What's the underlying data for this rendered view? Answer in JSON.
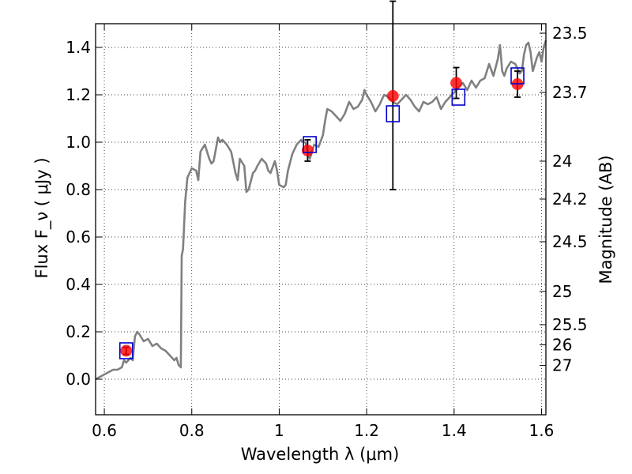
{
  "chart_data": {
    "type": "line",
    "title": "",
    "xlabel": "Wavelength  λ (μm)",
    "ylabel_left": "Flux  F_ν  ( μJy )",
    "ylabel_right": "Magnitude (AB)",
    "xlim": [
      0.58,
      1.61
    ],
    "ylim": [
      -0.15,
      1.5
    ],
    "grid": true,
    "x_ticks": [
      0.6,
      0.8,
      1.0,
      1.2,
      1.4,
      1.6
    ],
    "x_tick_labels": [
      "0.6",
      "0.8",
      "1",
      "1.2",
      "1.4",
      "1.6"
    ],
    "y_ticks": [
      0.0,
      0.2,
      0.4,
      0.6,
      0.8,
      1.0,
      1.2,
      1.4
    ],
    "y_tick_labels": [
      "0.0",
      "0.2",
      "0.4",
      "0.6",
      "0.8",
      "1.0",
      "1.2",
      "1.4"
    ],
    "right_ticks": [
      {
        "label": "23.5",
        "flux": 1.46
      },
      {
        "label": "23.7",
        "flux": 1.21
      },
      {
        "label": "24",
        "flux": 0.92
      },
      {
        "label": "24.2",
        "flux": 0.76
      },
      {
        "label": "24.5",
        "flux": 0.58
      },
      {
        "label": "25",
        "flux": 0.37
      },
      {
        "label": "25.5",
        "flux": 0.23
      },
      {
        "label": "26",
        "flux": 0.145
      },
      {
        "label": "27",
        "flux": 0.058
      }
    ],
    "model_spectrum": {
      "color": "#808080",
      "points": [
        [
          0.58,
          0.0
        ],
        [
          0.6,
          0.02
        ],
        [
          0.61,
          0.03
        ],
        [
          0.62,
          0.04
        ],
        [
          0.63,
          0.04
        ],
        [
          0.64,
          0.05
        ],
        [
          0.645,
          0.08
        ],
        [
          0.65,
          0.07
        ],
        [
          0.66,
          0.09
        ],
        [
          0.665,
          0.08
        ],
        [
          0.67,
          0.18
        ],
        [
          0.675,
          0.2
        ],
        [
          0.68,
          0.19
        ],
        [
          0.69,
          0.16
        ],
        [
          0.7,
          0.17
        ],
        [
          0.71,
          0.14
        ],
        [
          0.72,
          0.15
        ],
        [
          0.73,
          0.13
        ],
        [
          0.74,
          0.12
        ],
        [
          0.75,
          0.1
        ],
        [
          0.76,
          0.08
        ],
        [
          0.765,
          0.09
        ],
        [
          0.77,
          0.06
        ],
        [
          0.775,
          0.05
        ],
        [
          0.776,
          0.3
        ],
        [
          0.777,
          0.52
        ],
        [
          0.78,
          0.55
        ],
        [
          0.785,
          0.75
        ],
        [
          0.79,
          0.85
        ],
        [
          0.8,
          0.89
        ],
        [
          0.81,
          0.88
        ],
        [
          0.815,
          0.84
        ],
        [
          0.82,
          0.96
        ],
        [
          0.83,
          0.99
        ],
        [
          0.84,
          0.93
        ],
        [
          0.845,
          0.91
        ],
        [
          0.85,
          0.92
        ],
        [
          0.86,
          1.02
        ],
        [
          0.865,
          1.0
        ],
        [
          0.87,
          1.01
        ],
        [
          0.88,
          0.99
        ],
        [
          0.89,
          0.96
        ],
        [
          0.9,
          0.87
        ],
        [
          0.905,
          0.84
        ],
        [
          0.91,
          0.93
        ],
        [
          0.92,
          0.9
        ],
        [
          0.925,
          0.79
        ],
        [
          0.93,
          0.8
        ],
        [
          0.94,
          0.87
        ],
        [
          0.945,
          0.88
        ],
        [
          0.95,
          0.9
        ],
        [
          0.96,
          0.93
        ],
        [
          0.97,
          0.91
        ],
        [
          0.975,
          0.88
        ],
        [
          0.98,
          0.87
        ],
        [
          0.99,
          0.92
        ],
        [
          0.995,
          0.88
        ],
        [
          1.0,
          0.82
        ],
        [
          1.01,
          0.81
        ],
        [
          1.015,
          0.82
        ],
        [
          1.02,
          0.88
        ],
        [
          1.03,
          0.95
        ],
        [
          1.04,
          0.99
        ],
        [
          1.05,
          1.01
        ],
        [
          1.055,
          1.0
        ],
        [
          1.06,
          1.0
        ],
        [
          1.065,
          0.96
        ],
        [
          1.07,
          0.93
        ],
        [
          1.08,
          0.99
        ],
        [
          1.09,
          0.98
        ],
        [
          1.1,
          1.03
        ],
        [
          1.105,
          1.09
        ],
        [
          1.11,
          1.14
        ],
        [
          1.12,
          1.13
        ],
        [
          1.13,
          1.11
        ],
        [
          1.14,
          1.09
        ],
        [
          1.15,
          1.12
        ],
        [
          1.16,
          1.17
        ],
        [
          1.17,
          1.14
        ],
        [
          1.18,
          1.15
        ],
        [
          1.19,
          1.18
        ],
        [
          1.195,
          1.22
        ],
        [
          1.2,
          1.2
        ],
        [
          1.21,
          1.17
        ],
        [
          1.22,
          1.13
        ],
        [
          1.23,
          1.16
        ],
        [
          1.24,
          1.2
        ],
        [
          1.25,
          1.19
        ],
        [
          1.26,
          1.17
        ],
        [
          1.27,
          1.16
        ],
        [
          1.28,
          1.18
        ],
        [
          1.29,
          1.2
        ],
        [
          1.3,
          1.18
        ],
        [
          1.31,
          1.15
        ],
        [
          1.32,
          1.13
        ],
        [
          1.33,
          1.17
        ],
        [
          1.34,
          1.16
        ],
        [
          1.35,
          1.17
        ],
        [
          1.36,
          1.19
        ],
        [
          1.37,
          1.14
        ],
        [
          1.38,
          1.17
        ],
        [
          1.39,
          1.19
        ],
        [
          1.4,
          1.21
        ],
        [
          1.41,
          1.23
        ],
        [
          1.42,
          1.25
        ],
        [
          1.43,
          1.22
        ],
        [
          1.44,
          1.26
        ],
        [
          1.45,
          1.23
        ],
        [
          1.46,
          1.26
        ],
        [
          1.47,
          1.27
        ],
        [
          1.48,
          1.33
        ],
        [
          1.49,
          1.28
        ],
        [
          1.5,
          1.35
        ],
        [
          1.505,
          1.41
        ],
        [
          1.51,
          1.3
        ],
        [
          1.515,
          1.28
        ],
        [
          1.52,
          1.31
        ],
        [
          1.53,
          1.34
        ],
        [
          1.54,
          1.33
        ],
        [
          1.55,
          1.29
        ],
        [
          1.555,
          1.3
        ],
        [
          1.56,
          1.37
        ],
        [
          1.565,
          1.41
        ],
        [
          1.57,
          1.42
        ],
        [
          1.575,
          1.38
        ],
        [
          1.58,
          1.3
        ],
        [
          1.59,
          1.36
        ],
        [
          1.595,
          1.38
        ],
        [
          1.6,
          1.34
        ],
        [
          1.605,
          1.4
        ],
        [
          1.61,
          1.43
        ]
      ]
    },
    "model_photometry": {
      "color": "#0000cc",
      "marker": "open-square",
      "points": [
        {
          "x": 0.65,
          "y": 0.12
        },
        {
          "x": 1.07,
          "y": 0.99
        },
        {
          "x": 1.26,
          "y": 1.12
        },
        {
          "x": 1.41,
          "y": 1.19
        },
        {
          "x": 1.545,
          "y": 1.28
        }
      ]
    },
    "observed": {
      "color": "#ff0000",
      "marker": "filled-circle",
      "points": [
        {
          "x": 0.65,
          "y": 0.12,
          "err": 0.015
        },
        {
          "x": 1.065,
          "y": 0.965,
          "err": 0.045
        },
        {
          "x": 1.26,
          "y": 1.195,
          "err_low": 0.395,
          "err_high": 0.4
        },
        {
          "x": 1.405,
          "y": 1.25,
          "err": 0.065
        },
        {
          "x": 1.545,
          "y": 1.245,
          "err": 0.055
        }
      ]
    }
  }
}
